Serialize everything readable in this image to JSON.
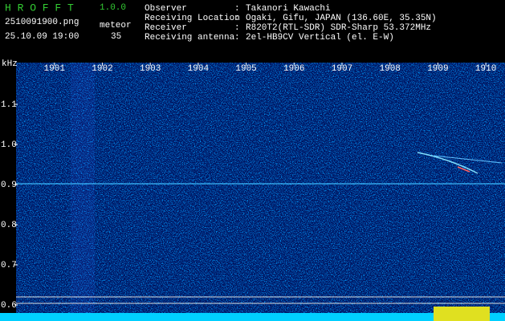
{
  "header": {
    "app_name": "H R O F F T",
    "version": "1.0.0",
    "file_name": "2510091900.png",
    "mode": "meteor",
    "timestamp": "25.10.09 19:00",
    "count": "35",
    "fields": [
      {
        "label": "Observer",
        "value": "Takanori Kawachi"
      },
      {
        "label": "Receiving Location",
        "value": "Ogaki, Gifu, JAPAN (136.60E, 35.35N)"
      },
      {
        "label": "Receiver",
        "value": "R820T2(RTL-SDR) SDR-Sharp 53.372MHz"
      },
      {
        "label": "Receiving antenna",
        "value": "2el-HB9CV Vertical (el. E-W)"
      }
    ]
  },
  "chart_data": {
    "type": "spectrogram",
    "y_label": "kHz",
    "xlim": [
      1900.2,
      1910.4
    ],
    "xticks": [
      1901,
      1902,
      1903,
      1904,
      1905,
      1906,
      1907,
      1908,
      1909,
      1910
    ],
    "ylim": [
      1.204,
      0.57
    ],
    "yticks": [
      1.1,
      {
        "value": 1,
        "label": "1.0"
      },
      0.9,
      0.8,
      0.7,
      0.6
    ]
  }
}
